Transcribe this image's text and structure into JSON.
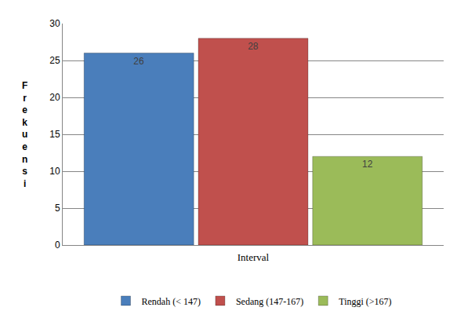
{
  "chart_data": {
    "type": "bar",
    "categories": [
      null
    ],
    "series": [
      {
        "name": "Rendah (< 147)",
        "color": "#4a7ebb",
        "values": [
          26
        ]
      },
      {
        "name": "Sedang (147-167)",
        "color": "#c0504d",
        "values": [
          28
        ]
      },
      {
        "name": "Tinggi (>167)",
        "color": "#9bbb59",
        "values": [
          12
        ]
      }
    ],
    "xlabel": "Interval",
    "ylabel": "Frekuensi",
    "ylim": [
      0,
      30
    ],
    "yticks": [
      0,
      5,
      10,
      15,
      20,
      25,
      30
    ],
    "grid": true,
    "legend": "bottom",
    "data_labels": true
  }
}
